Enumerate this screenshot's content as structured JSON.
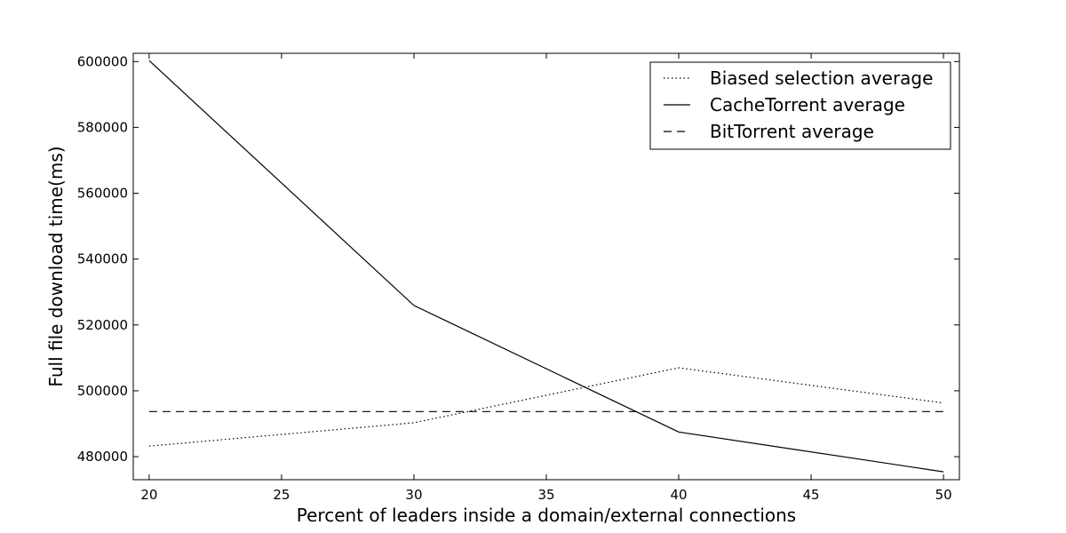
{
  "chart_data": {
    "type": "line",
    "xlabel": "Percent of leaders inside a domain/external connections",
    "ylabel": "Full file download time(ms)",
    "xlim": [
      19.4,
      50.6
    ],
    "ylim": [
      473000,
      602500
    ],
    "xticks": [
      "20",
      "25",
      "30",
      "35",
      "40",
      "45",
      "50"
    ],
    "yticks": [
      "480000",
      "500000",
      "520000",
      "540000",
      "560000",
      "580000",
      "600000"
    ],
    "grid": false,
    "legend_position": "top-right",
    "series": [
      {
        "name": "Biased selection average",
        "style": "dotted",
        "x": [
          20,
          30,
          40,
          50
        ],
        "y": [
          483200,
          490300,
          507000,
          496300
        ]
      },
      {
        "name": "CacheTorrent average",
        "style": "solid",
        "x": [
          20,
          30,
          40,
          50
        ],
        "y": [
          600300,
          525900,
          487500,
          475400
        ]
      },
      {
        "name": "BitTorrent average",
        "style": "dashed",
        "x": [
          20,
          30,
          40,
          50
        ],
        "y": [
          493700,
          493700,
          493700,
          493700
        ]
      }
    ],
    "colors": {
      "line": "#000000",
      "background": "#ffffff"
    }
  }
}
